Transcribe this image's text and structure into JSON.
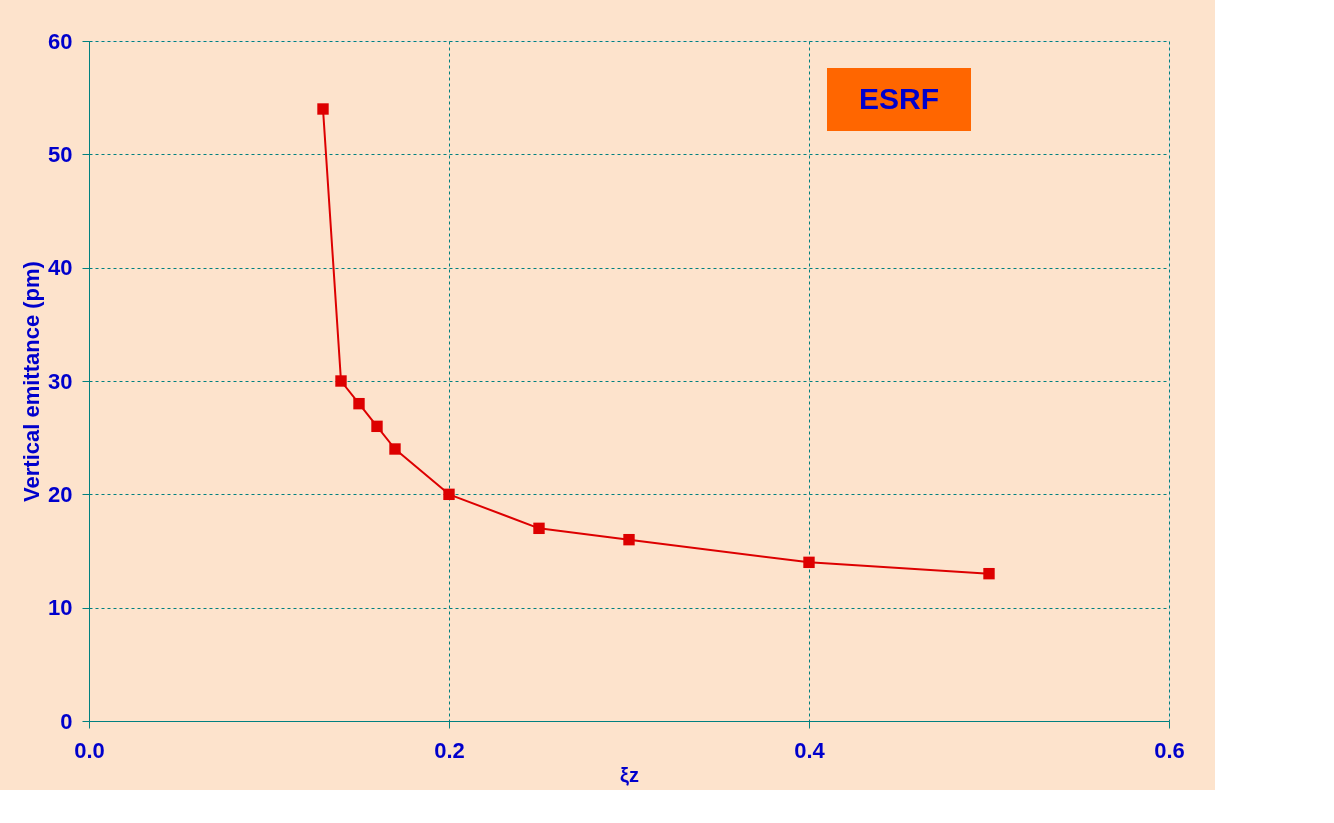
{
  "chart_data": {
    "type": "line",
    "xlabel": "ξz",
    "ylabel": "Vertical emittance (pm)",
    "annotations": [
      "ESRF"
    ],
    "x": [
      0.13,
      0.14,
      0.15,
      0.16,
      0.17,
      0.2,
      0.25,
      0.3,
      0.4,
      0.5
    ],
    "series": [
      {
        "color": "#dd0000",
        "values": [
          54,
          30,
          28,
          26,
          24,
          20,
          17,
          16,
          14,
          13
        ]
      }
    ],
    "xlim": [
      0,
      0.6
    ],
    "xticks": [
      {
        "value": 0,
        "label": "0.0"
      },
      0.2,
      0.4,
      0.6
    ],
    "ylim": [
      0,
      60
    ],
    "yticks": [
      0,
      10,
      20,
      30,
      40,
      50,
      60
    ],
    "grid": true,
    "marker": "square",
    "line_style": "solid"
  }
}
